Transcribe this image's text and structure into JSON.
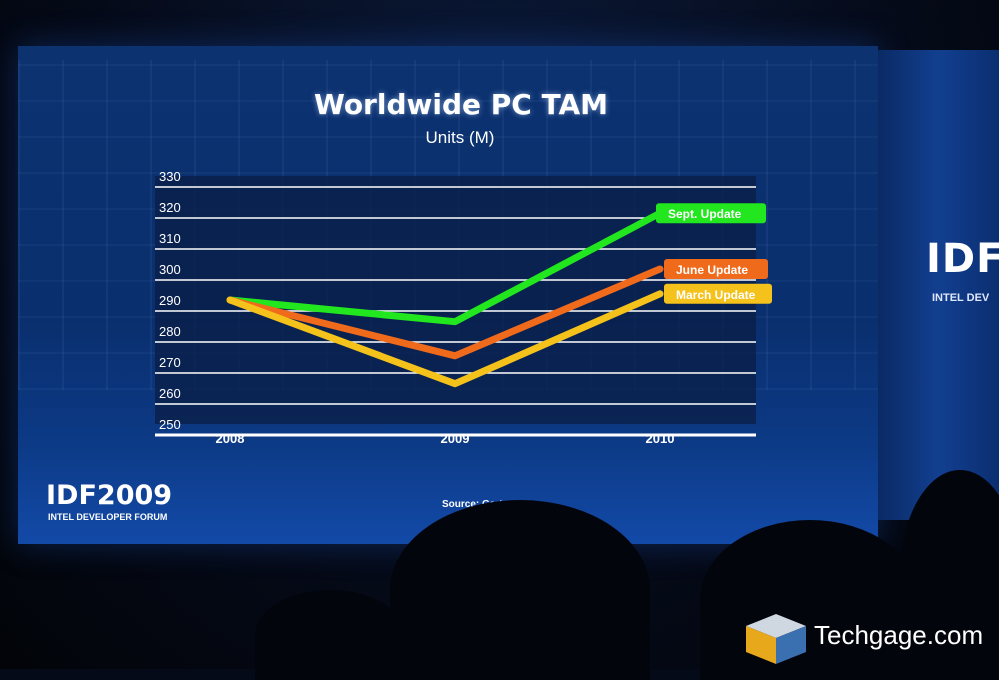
{
  "chart_data": {
    "type": "line",
    "title": "Worldwide PC TAM",
    "subtitle": "Units (M)",
    "x": [
      "2008",
      "2009",
      "2010"
    ],
    "yticks": [
      250,
      260,
      270,
      280,
      290,
      300,
      310,
      320,
      330
    ],
    "ylim": [
      250,
      330
    ],
    "grid": true,
    "series": [
      {
        "name": "Sept. Update",
        "color": "#22e61e",
        "values": [
          290,
          283,
          318
        ]
      },
      {
        "name": "June Update",
        "color": "#f06a1c",
        "values": [
          290,
          272,
          300
        ]
      },
      {
        "name": "March Update",
        "color": "#f4c21a",
        "values": [
          290,
          263,
          292
        ]
      }
    ],
    "source": "Source: Gartner"
  },
  "branding": {
    "slide_logo": "IDF2009",
    "slide_logo_sub": "INTEL DEVELOPER FORUM",
    "side_logo": "IDF",
    "side_logo_sub": "INTEL DEV",
    "watermark": "Techgage.com"
  },
  "colors": {
    "screen": "#0c3270",
    "plot_bg": "#0a1e45",
    "gridline": "#ffffff"
  }
}
